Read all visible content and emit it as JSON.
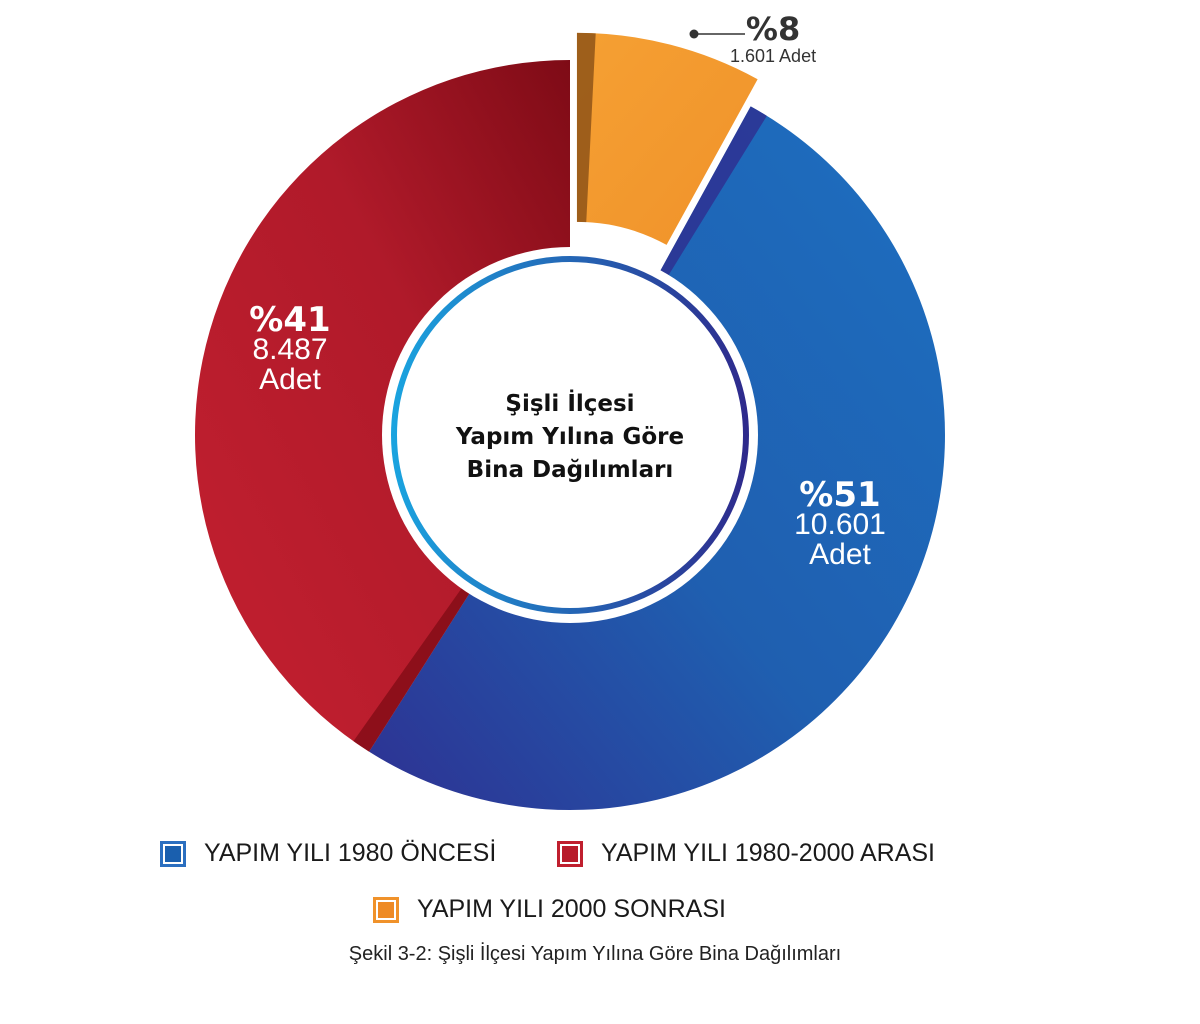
{
  "chart_data": {
    "type": "pie",
    "subtype": "donut",
    "title": "Şişli İlçesi Yapım Yılına Göre Bina Dağılımları",
    "center_title_lines": [
      "Şişli İlçesi",
      "Yapım Yılına Göre",
      "Bina Dağılımları"
    ],
    "slices": [
      {
        "name": "YAPIM YILI 2000 SONRASI",
        "percent": 8,
        "percent_label": "%8",
        "count_label": "1.601 Adet",
        "color": "#f59a2e",
        "dark": "#8e5418",
        "exploded": true
      },
      {
        "name": "YAPIM YILI 1980 ÖNCESİ",
        "percent": 51,
        "percent_label": "%51",
        "count_label": "10.601",
        "count_unit": "Adet",
        "color": "#1f6bb8",
        "dark": "#2e3192"
      },
      {
        "name": "YAPIM YILI 1980-2000 ARASI",
        "percent": 41,
        "percent_label": "%41",
        "count_label": "8.487",
        "count_unit": "Adet",
        "color": "#c01f2e",
        "dark": "#850d18"
      }
    ],
    "legend": [
      "YAPIM YILI 1980 ÖNCESİ",
      "YAPIM YILI 1980-2000 ARASI",
      "YAPIM YILI 2000 SONRASI"
    ],
    "legend_placement": "bottom"
  },
  "caption": "Şekil 3-2: Şişli İlçesi Yapım Yılına Göre Bina Dağılımları"
}
